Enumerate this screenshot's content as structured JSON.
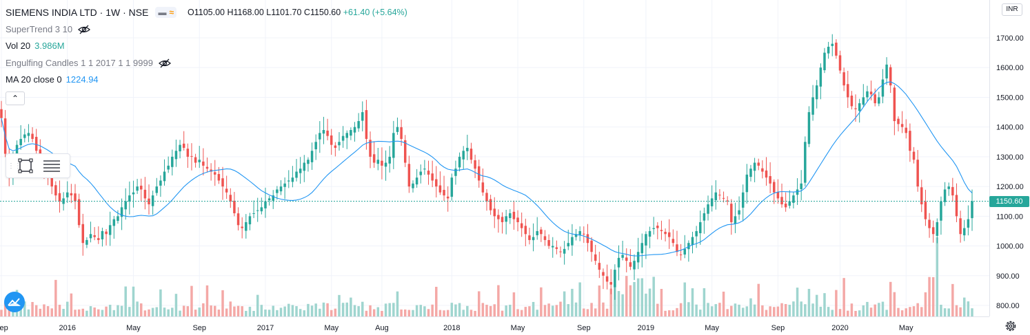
{
  "symbol": {
    "title": "SIEMENS INDIA LTD · 1W · NSE",
    "ohlc": "O1105.00 H1168.00 L1101.70 C1150.60",
    "change": "+61.40 (+5.64%)"
  },
  "indicators": [
    {
      "label": "SuperTrend 3 10",
      "value": "",
      "hidden": true
    },
    {
      "label": "Vol 20",
      "value": "3.986M",
      "hidden": false
    },
    {
      "label": "Engulfing Candles 1 1 2017 1 1 9999",
      "value": "",
      "hidden": true
    },
    {
      "label": "MA 20 close 0",
      "value": "1224.94",
      "hidden": false
    }
  ],
  "icons": {
    "eye_hidden": "eye-crossed-icon",
    "collapse": "chevron-up-icon",
    "rectangle_tool": "rectangle-tool-icon",
    "lines_tool": "lines-tool-icon",
    "logo": "tradingview-logo-icon",
    "settings": "gear-icon"
  },
  "currency": "INR",
  "last_price_label": "1150.60",
  "colors": {
    "up": "#26a69a",
    "down": "#ef5350",
    "ma": "#2196f3",
    "vol_up": "#9fd5cf",
    "vol_down": "#f4a8a6",
    "grid": "#f0f3fa"
  },
  "chart_data": {
    "type": "candlestick",
    "title": "SIEMENS INDIA LTD · 1W · NSE",
    "y_ticks": [
      800,
      900,
      1000,
      1100,
      1200,
      1300,
      1400,
      1500,
      1600,
      1700
    ],
    "y_tick_labels": [
      "800.00",
      "900.00",
      "1000.00",
      "1100.00",
      "1200.00",
      "1300.00",
      "1400.00",
      "1500.00",
      "1600.00",
      "1700.00"
    ],
    "ylim": [
      755,
      1805
    ],
    "x_labels": [
      {
        "label": "Sep",
        "week": 0
      },
      {
        "label": "2016",
        "week": 17
      },
      {
        "label": "May",
        "week": 34
      },
      {
        "label": "Sep",
        "week": 51
      },
      {
        "label": "2017",
        "week": 68
      },
      {
        "label": "May",
        "week": 85
      },
      {
        "label": "Aug",
        "week": 98
      },
      {
        "label": "2018",
        "week": 116
      },
      {
        "label": "May",
        "week": 133
      },
      {
        "label": "Sep",
        "week": 150
      },
      {
        "label": "2019",
        "week": 166
      },
      {
        "label": "May",
        "week": 183
      },
      {
        "label": "Sep",
        "week": 200
      },
      {
        "label": "2020",
        "week": 216
      },
      {
        "label": "May",
        "week": 233
      }
    ],
    "close": [
      1430,
      1310,
      1240,
      1300,
      1340,
      1360,
      1375,
      1380,
      1360,
      1320,
      1290,
      1250,
      1230,
      1200,
      1170,
      1150,
      1160,
      1180,
      1170,
      1150,
      1070,
      1010,
      1020,
      1040,
      1030,
      1020,
      1050,
      1040,
      1070,
      1090,
      1100,
      1130,
      1150,
      1170,
      1180,
      1200,
      1190,
      1160,
      1140,
      1170,
      1200,
      1220,
      1250,
      1270,
      1300,
      1320,
      1340,
      1330,
      1300,
      1300,
      1280,
      1290,
      1270,
      1260,
      1250,
      1240,
      1220,
      1200,
      1180,
      1150,
      1110,
      1070,
      1060,
      1080,
      1100,
      1110,
      1120,
      1130,
      1150,
      1160,
      1170,
      1190,
      1200,
      1210,
      1220,
      1230,
      1250,
      1260,
      1280,
      1290,
      1320,
      1350,
      1380,
      1390,
      1370,
      1340,
      1330,
      1350,
      1370,
      1380,
      1390,
      1400,
      1420,
      1450,
      1360,
      1300,
      1280,
      1290,
      1270,
      1280,
      1300,
      1380,
      1400,
      1360,
      1280,
      1200,
      1210,
      1230,
      1250,
      1260,
      1240,
      1220,
      1200,
      1180,
      1170,
      1160,
      1230,
      1260,
      1300,
      1320,
      1330,
      1290,
      1260,
      1220,
      1180,
      1150,
      1120,
      1100,
      1090,
      1080,
      1100,
      1110,
      1090,
      1080,
      1060,
      1040,
      1020,
      1030,
      1050,
      1040,
      1020,
      1000,
      1000,
      990,
      980,
      990,
      1010,
      1030,
      1040,
      1050,
      1040,
      1010,
      980,
      950,
      920,
      900,
      880,
      870,
      920,
      960,
      970,
      950,
      930,
      950,
      980,
      1010,
      1040,
      1050,
      1060,
      1060,
      1050,
      1040,
      1030,
      1010,
      980,
      970,
      990,
      1010,
      1030,
      1050,
      1080,
      1110,
      1140,
      1160,
      1180,
      1170,
      1160,
      1150,
      1080,
      1100,
      1120,
      1180,
      1240,
      1260,
      1280,
      1270,
      1250,
      1230,
      1210,
      1180,
      1160,
      1140,
      1130,
      1150,
      1170,
      1190,
      1210,
      1350,
      1450,
      1500,
      1540,
      1600,
      1650,
      1670,
      1680,
      1640,
      1590,
      1540,
      1500,
      1470,
      1460,
      1480,
      1500,
      1520,
      1510,
      1480,
      1500,
      1560,
      1610,
      1540,
      1420,
      1410,
      1400,
      1380,
      1320,
      1290,
      1200,
      1140,
      1090,
      1060,
      1040,
      1080,
      1150,
      1190,
      1200,
      1170,
      1100,
      1040,
      1060,
      1090,
      1150.6
    ],
    "ma20_last": 1224.94,
    "volume_peak_week": 241,
    "last_price": 1150.6
  }
}
